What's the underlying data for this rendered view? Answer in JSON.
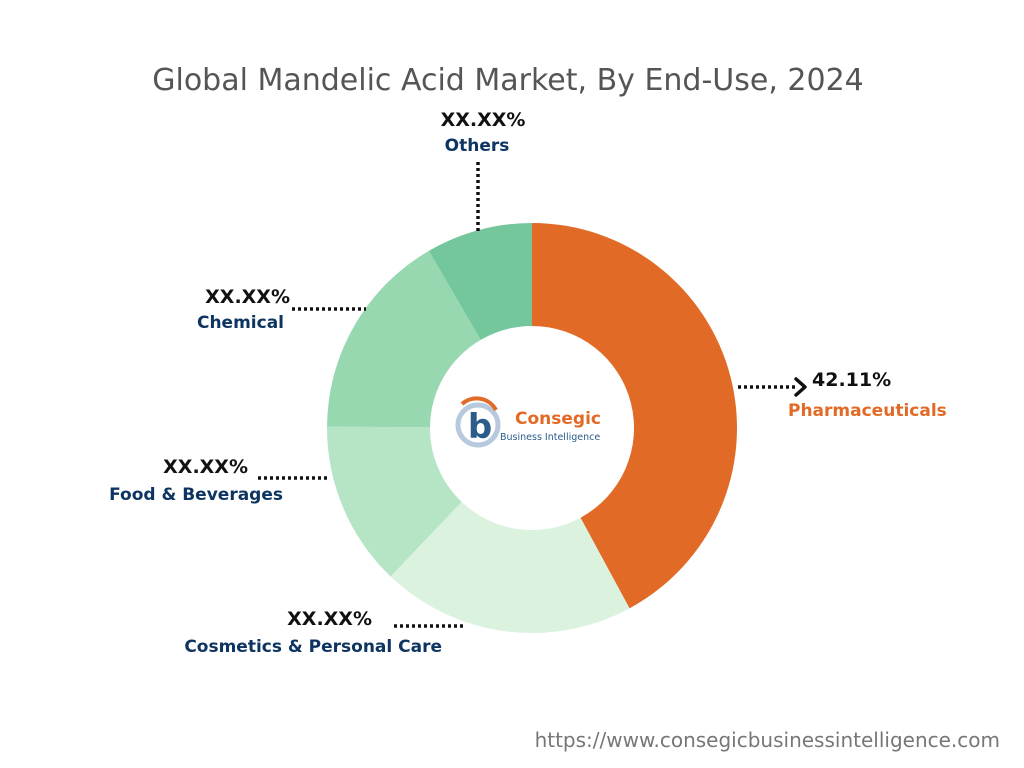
{
  "chart_data": {
    "type": "pie",
    "title": "Global Mandelic Acid Market, By End-Use, 2024",
    "slices": [
      {
        "label": "Pharmaceuticals",
        "value": 42.11,
        "value_label": "42.11%",
        "color": "#E26A27",
        "label_color": "#E26A27"
      },
      {
        "label": "Cosmetics & Personal Care",
        "value": 20.0,
        "value_label": "XX.XX%",
        "color": "#DBF2DF",
        "label_color": "#0E3461"
      },
      {
        "label": "Food & Beverages",
        "value": 13.0,
        "value_label": "XX.XX%",
        "color": "#B6E5C6",
        "label_color": "#0E3461"
      },
      {
        "label": "Chemical",
        "value": 16.5,
        "value_label": "XX.XX%",
        "color": "#97D8B0",
        "label_color": "#0E3461"
      },
      {
        "label": "Others",
        "value": 8.39,
        "value_label": "XX.XX%",
        "color": "#74C69C",
        "label_color": "#0E3461"
      }
    ]
  },
  "logo": {
    "name": "Consegic",
    "tagline": "Business Intelligence",
    "letter": "b",
    "name_color": "#E26A27",
    "tagline_color": "#2B5C8A"
  },
  "footer": {
    "url": "https://www.consegicbusinessintelligence.com"
  }
}
